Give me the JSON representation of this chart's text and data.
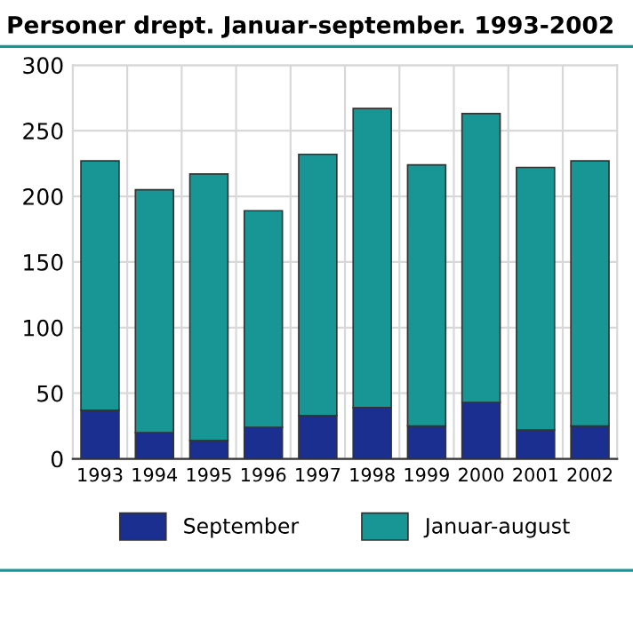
{
  "chart_data": {
    "type": "bar",
    "title": "Personer drept. Januar-september. 1993-2002",
    "stacked": true,
    "categories": [
      "1993",
      "1994",
      "1995",
      "1996",
      "1997",
      "1998",
      "1999",
      "2000",
      "2001",
      "2002"
    ],
    "series": [
      {
        "name": "September",
        "color": "#1a2f8f",
        "values": [
          37,
          20,
          14,
          24,
          33,
          39,
          25,
          43,
          22,
          25
        ]
      },
      {
        "name": "Januar-august",
        "color": "#189696",
        "values": [
          190,
          185,
          203,
          165,
          199,
          228,
          199,
          220,
          200,
          202
        ]
      }
    ],
    "ylim": [
      0,
      300
    ],
    "yticks": [
      0,
      50,
      100,
      150,
      200,
      250,
      300
    ],
    "grid": true,
    "legend": "bottom"
  }
}
